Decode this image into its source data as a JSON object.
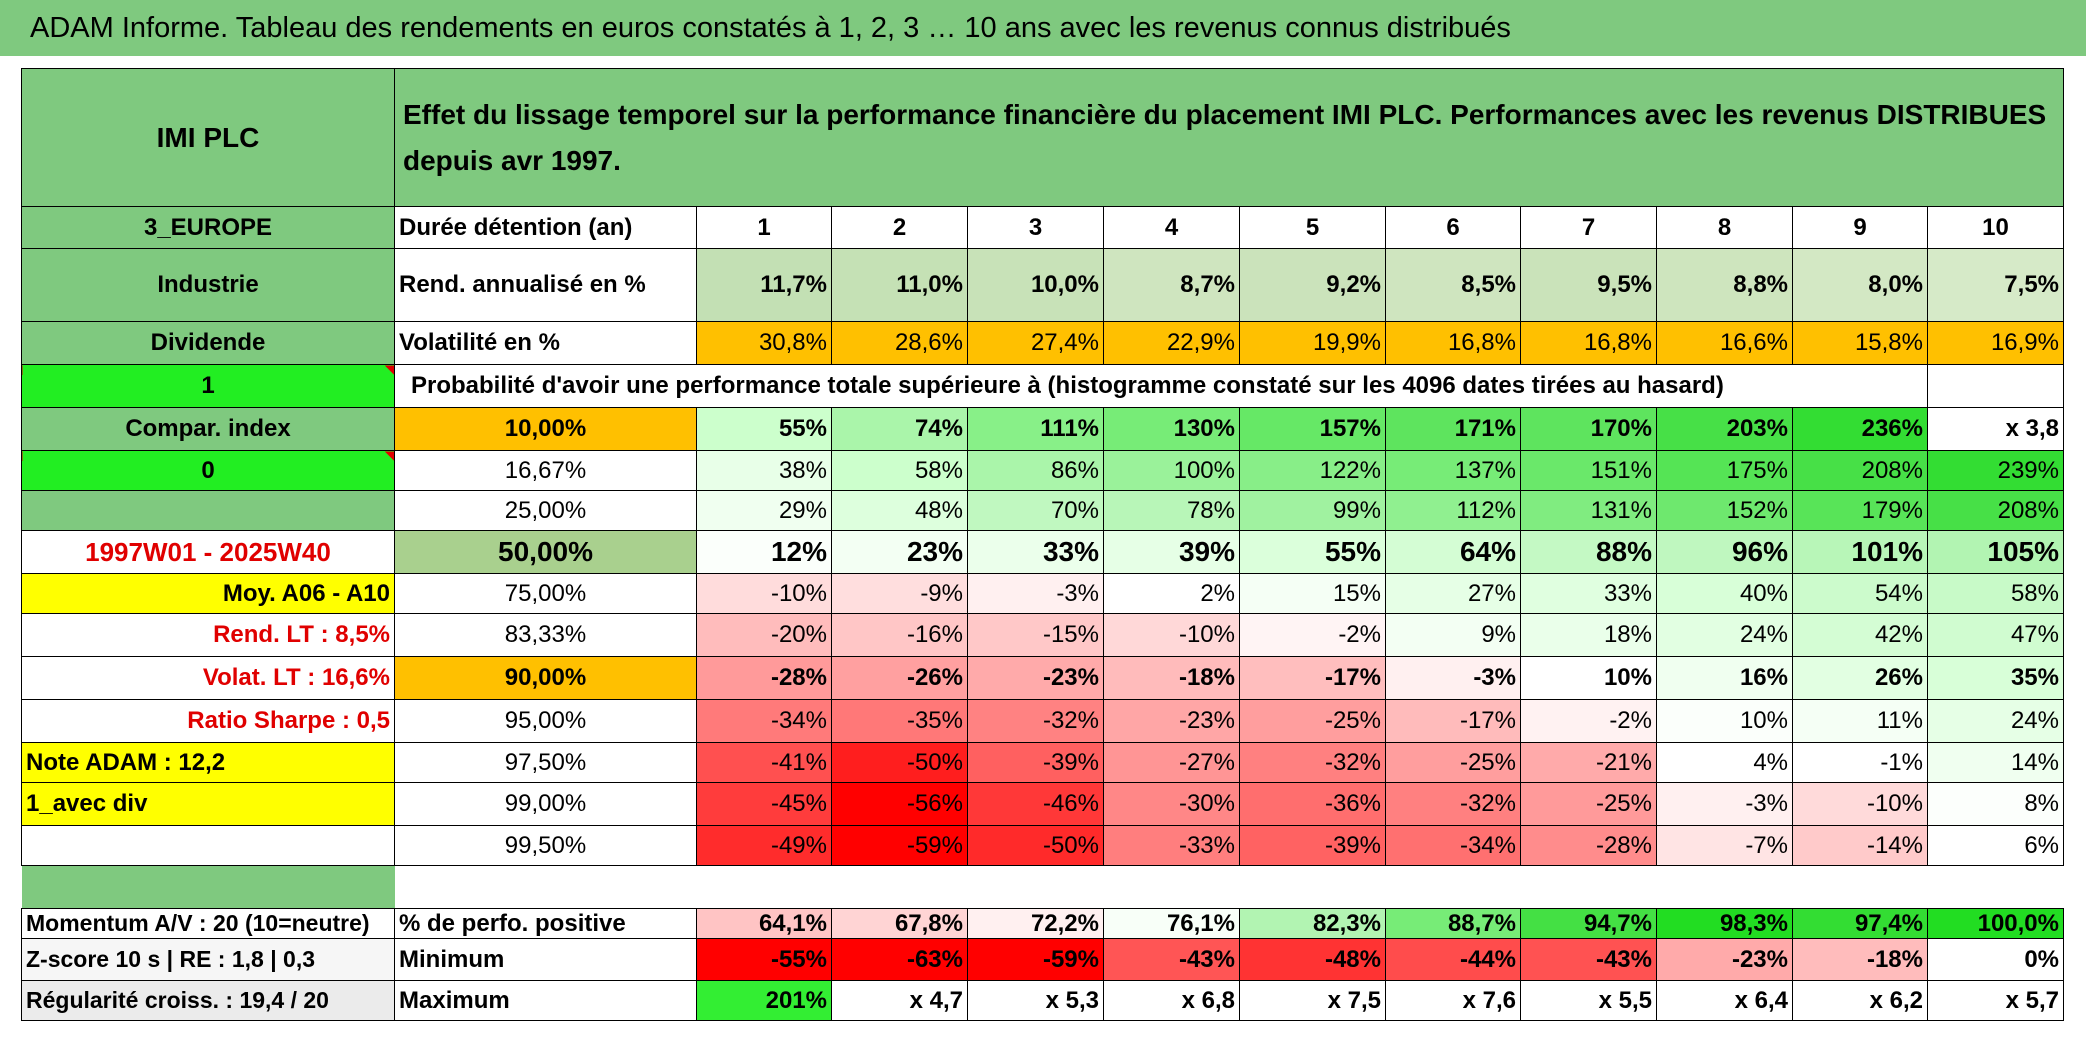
{
  "title": "ADAM Informe. Tableau des rendements en euros constatés à 1, 2, 3 … 10 ans avec les revenus connus distribués",
  "colors": {
    "header_green": "#7fc97f",
    "bright_green": "#33ee33",
    "orange": "#ffc000",
    "yellow": "#ffff00",
    "red_text": "#e00000"
  },
  "left": {
    "name": "IMI PLC",
    "region": "3_EUROPE",
    "sector": "Industrie",
    "dividend": "Dividende",
    "flag1": "1",
    "compar": "Compar. index",
    "flag0": "0",
    "period": "1997W01 - 2025W40",
    "moy": "Moy. A06 - A10",
    "rend_lt": "Rend. LT :   8,5%",
    "volat_lt": "Volat. LT :   16,6%",
    "sharpe": "Ratio Sharpe :   0,5",
    "note": "Note ADAM : 12,2",
    "avec_div": "1_avec div",
    "momentum": "Momentum A/V : 20 (10=neutre)",
    "zscore": "Z-score 10 s | RE : 1,8 | 0,3",
    "regularite": "Régularité croiss. : 19,4 / 20"
  },
  "header_text": "Effet du lissage temporel sur la performance financière du placement IMI PLC. Performances avec les revenus DISTRIBUES depuis avr 1997.",
  "duration_label": "Durée détention (an)",
  "years": [
    "1",
    "2",
    "3",
    "4",
    "5",
    "6",
    "7",
    "8",
    "9",
    "10"
  ],
  "rend_label": "Rend. annualisé en %",
  "rend": [
    "11,7%",
    "11,0%",
    "10,0%",
    "8,7%",
    "9,2%",
    "8,5%",
    "9,5%",
    "8,8%",
    "8,0%",
    "7,5%"
  ],
  "vol_label": "Volatilité en %",
  "vol": [
    "30,8%",
    "28,6%",
    "27,4%",
    "22,9%",
    "19,9%",
    "16,8%",
    "16,8%",
    "16,6%",
    "15,8%",
    "16,9%"
  ],
  "prob_title": "Probabilité d'avoir une performance totale supérieure à (histogramme constaté sur les 4096 dates tirées au hasard)",
  "quantiles": [
    {
      "label": "10,00%",
      "values": [
        "55%",
        "74%",
        "111%",
        "130%",
        "157%",
        "171%",
        "170%",
        "203%",
        "236%",
        "x 3,8"
      ]
    },
    {
      "label": "16,67%",
      "values": [
        "38%",
        "58%",
        "86%",
        "100%",
        "122%",
        "137%",
        "151%",
        "175%",
        "208%",
        "239%"
      ]
    },
    {
      "label": "25,00%",
      "values": [
        "29%",
        "48%",
        "70%",
        "78%",
        "99%",
        "112%",
        "131%",
        "152%",
        "179%",
        "208%"
      ]
    },
    {
      "label": "50,00%",
      "values": [
        "12%",
        "23%",
        "33%",
        "39%",
        "55%",
        "64%",
        "88%",
        "96%",
        "101%",
        "105%"
      ]
    },
    {
      "label": "75,00%",
      "values": [
        "-10%",
        "-9%",
        "-3%",
        "2%",
        "15%",
        "27%",
        "33%",
        "40%",
        "54%",
        "58%"
      ]
    },
    {
      "label": "83,33%",
      "values": [
        "-20%",
        "-16%",
        "-15%",
        "-10%",
        "-2%",
        "9%",
        "18%",
        "24%",
        "42%",
        "47%"
      ]
    },
    {
      "label": "90,00%",
      "values": [
        "-28%",
        "-26%",
        "-23%",
        "-18%",
        "-17%",
        "-3%",
        "10%",
        "16%",
        "26%",
        "35%"
      ]
    },
    {
      "label": "95,00%",
      "values": [
        "-34%",
        "-35%",
        "-32%",
        "-23%",
        "-25%",
        "-17%",
        "-2%",
        "10%",
        "11%",
        "24%"
      ]
    },
    {
      "label": "97,50%",
      "values": [
        "-41%",
        "-50%",
        "-39%",
        "-27%",
        "-32%",
        "-25%",
        "-21%",
        "4%",
        "-1%",
        "14%"
      ]
    },
    {
      "label": "99,00%",
      "values": [
        "-45%",
        "-56%",
        "-46%",
        "-30%",
        "-36%",
        "-32%",
        "-25%",
        "-3%",
        "-10%",
        "8%"
      ]
    },
    {
      "label": "99,50%",
      "values": [
        "-49%",
        "-59%",
        "-50%",
        "-33%",
        "-39%",
        "-34%",
        "-28%",
        "-7%",
        "-14%",
        "6%"
      ]
    }
  ],
  "stats": [
    {
      "label": "% de perfo. positive",
      "values": [
        "64,1%",
        "67,8%",
        "72,2%",
        "76,1%",
        "82,3%",
        "88,7%",
        "94,7%",
        "98,3%",
        "97,4%",
        "100,0%"
      ]
    },
    {
      "label": "Minimum",
      "values": [
        "-55%",
        "-63%",
        "-59%",
        "-43%",
        "-48%",
        "-44%",
        "-43%",
        "-23%",
        "-18%",
        "0%"
      ]
    },
    {
      "label": "Maximum",
      "values": [
        "201%",
        "x 4,7",
        "x 5,3",
        "x 6,8",
        "x 7,5",
        "x 7,6",
        "x 5,5",
        "x 6,4",
        "x 6,2",
        "x 5,7"
      ]
    }
  ]
}
